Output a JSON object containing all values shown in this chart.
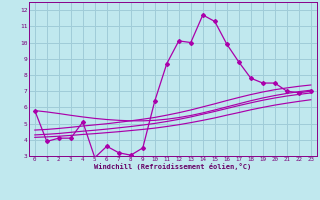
{
  "xlabel": "Windchill (Refroidissement éolien,°C)",
  "xlim": [
    -0.5,
    23.5
  ],
  "ylim": [
    3,
    12.5
  ],
  "xticks": [
    0,
    1,
    2,
    3,
    4,
    5,
    6,
    7,
    8,
    9,
    10,
    11,
    12,
    13,
    14,
    15,
    16,
    17,
    18,
    19,
    20,
    21,
    22,
    23
  ],
  "yticks": [
    3,
    4,
    5,
    6,
    7,
    8,
    9,
    10,
    11,
    12
  ],
  "bg_color": "#c0e8ee",
  "grid_color": "#a0ccd8",
  "line_color": "#aa00aa",
  "main_line_x": [
    0,
    1,
    2,
    3,
    4,
    5,
    6,
    7,
    8,
    9,
    10,
    11,
    12,
    13,
    14,
    15,
    16,
    17,
    18,
    19,
    20,
    21,
    22,
    23
  ],
  "main_line_y": [
    5.8,
    3.9,
    4.1,
    4.1,
    5.1,
    2.9,
    3.6,
    3.2,
    3.05,
    3.5,
    6.4,
    8.7,
    10.1,
    10.0,
    11.7,
    11.3,
    9.9,
    8.8,
    7.8,
    7.5,
    7.5,
    7.0,
    6.9,
    7.0
  ],
  "trend1_y": [
    4.15,
    4.18,
    4.22,
    4.27,
    4.33,
    4.38,
    4.44,
    4.5,
    4.57,
    4.64,
    4.72,
    4.82,
    4.93,
    5.06,
    5.2,
    5.35,
    5.52,
    5.68,
    5.85,
    6.0,
    6.14,
    6.26,
    6.37,
    6.47
  ],
  "trend2_y": [
    4.3,
    4.34,
    4.39,
    4.46,
    4.53,
    4.59,
    4.66,
    4.74,
    4.82,
    4.91,
    5.01,
    5.13,
    5.26,
    5.41,
    5.58,
    5.75,
    5.93,
    6.11,
    6.28,
    6.44,
    6.58,
    6.7,
    6.8,
    6.89
  ],
  "trend3_y": [
    4.6,
    4.64,
    4.7,
    4.77,
    4.85,
    4.92,
    4.99,
    5.08,
    5.17,
    5.27,
    5.38,
    5.52,
    5.67,
    5.84,
    6.03,
    6.22,
    6.42,
    6.61,
    6.79,
    6.95,
    7.09,
    7.2,
    7.3,
    7.38
  ],
  "trend4_y": [
    5.8,
    5.72,
    5.62,
    5.51,
    5.41,
    5.32,
    5.25,
    5.2,
    5.17,
    5.17,
    5.2,
    5.27,
    5.37,
    5.5,
    5.66,
    5.84,
    6.03,
    6.22,
    6.41,
    6.58,
    6.73,
    6.86,
    6.97,
    7.06
  ]
}
